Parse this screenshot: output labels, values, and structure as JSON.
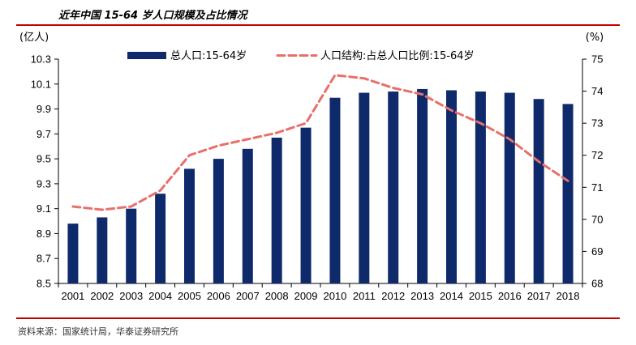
{
  "title": "近年中国 15-64 岁人口规模及占比情况",
  "source": "资料来源：国家统计局，华泰证券研究所",
  "chart_data": {
    "type": "bar",
    "categories": [
      "2001",
      "2002",
      "2003",
      "2004",
      "2005",
      "2006",
      "2007",
      "2008",
      "2009",
      "2010",
      "2011",
      "2012",
      "2013",
      "2014",
      "2015",
      "2016",
      "2017",
      "2018"
    ],
    "series": [
      {
        "name": "总人口:15-64岁",
        "type": "bar",
        "axis": "left",
        "color": "#0f2a6b",
        "values": [
          8.98,
          9.03,
          9.1,
          9.22,
          9.42,
          9.5,
          9.58,
          9.67,
          9.75,
          9.99,
          10.03,
          10.04,
          10.06,
          10.05,
          10.04,
          10.03,
          9.98,
          9.94
        ]
      },
      {
        "name": "人口结构:占总人口比例:15-64岁",
        "type": "line",
        "axis": "right",
        "color": "#e8706a",
        "dashed": true,
        "values": [
          70.4,
          70.3,
          70.4,
          70.9,
          72.0,
          72.3,
          72.5,
          72.7,
          73.0,
          74.5,
          74.4,
          74.1,
          73.9,
          73.4,
          73.0,
          72.5,
          71.8,
          71.2
        ]
      }
    ],
    "y_left": {
      "unit": "(亿人)",
      "range": [
        8.5,
        10.3
      ],
      "ticks": [
        "8.5",
        "8.7",
        "8.9",
        "9.1",
        "9.3",
        "9.5",
        "9.7",
        "9.9",
        "10.1",
        "10.3"
      ]
    },
    "y_right": {
      "unit": "(%)",
      "range": [
        68,
        75
      ],
      "ticks": [
        "68",
        "69",
        "70",
        "71",
        "72",
        "73",
        "74",
        "75"
      ]
    },
    "legend_position": "top",
    "grid": false
  }
}
